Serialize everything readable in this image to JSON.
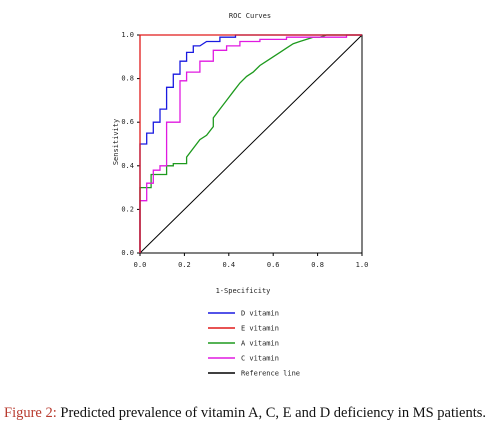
{
  "figure": {
    "caption_label": "Figure 2:",
    "caption_text": " Predicted prevalence of vitamin A, C, E and D deficiency in MS patients."
  },
  "chart_data": {
    "type": "line",
    "title": "ROC Curves",
    "xlabel": "1-Specificity",
    "ylabel": "Sensitivity",
    "xlim": [
      0,
      1
    ],
    "ylim": [
      0,
      1
    ],
    "x_ticks": [
      "0.0",
      "0.2",
      "0.4",
      "0.6",
      "0.8",
      "1.0"
    ],
    "y_ticks": [
      "0.0",
      "0.2",
      "0.4",
      "0.6",
      "0.8",
      "1.0"
    ],
    "grid": false,
    "legend_position": "bottom-center",
    "colors": {
      "vitamin_d": "#1a1ae0",
      "vitamin_e": "#e01a1a",
      "vitamin_a": "#1e9a1e",
      "vitamin_c": "#e01ae0",
      "reference": "#000000"
    },
    "series": [
      {
        "name": "D vitamin",
        "color_key": "vitamin_d",
        "x": [
          0.0,
          0.0,
          0.03,
          0.03,
          0.06,
          0.06,
          0.09,
          0.09,
          0.12,
          0.12,
          0.15,
          0.15,
          0.18,
          0.18,
          0.21,
          0.21,
          0.24,
          0.24,
          0.27,
          0.3,
          0.33,
          0.36,
          0.36,
          0.4,
          0.43,
          0.43,
          0.47,
          1.0
        ],
        "y": [
          0.0,
          0.5,
          0.5,
          0.55,
          0.55,
          0.6,
          0.6,
          0.66,
          0.66,
          0.76,
          0.76,
          0.82,
          0.82,
          0.88,
          0.88,
          0.92,
          0.92,
          0.95,
          0.95,
          0.97,
          0.97,
          0.97,
          0.99,
          0.99,
          0.99,
          1.0,
          1.0,
          1.0
        ]
      },
      {
        "name": "E vitamin",
        "color_key": "vitamin_e",
        "x": [
          0.0,
          0.0,
          1.0
        ],
        "y": [
          0.0,
          1.0,
          1.0
        ]
      },
      {
        "name": "A vitamin",
        "color_key": "vitamin_a",
        "x": [
          0.0,
          0.0,
          0.05,
          0.05,
          0.12,
          0.12,
          0.15,
          0.15,
          0.21,
          0.21,
          0.27,
          0.3,
          0.33,
          0.33,
          0.36,
          0.39,
          0.42,
          0.45,
          0.48,
          0.51,
          0.54,
          0.57,
          0.6,
          0.63,
          0.66,
          0.69,
          0.72,
          0.75,
          0.78,
          0.81,
          0.84,
          0.88,
          0.92,
          0.96,
          1.0
        ],
        "y": [
          0.0,
          0.3,
          0.3,
          0.36,
          0.36,
          0.4,
          0.4,
          0.41,
          0.41,
          0.44,
          0.52,
          0.54,
          0.58,
          0.62,
          0.66,
          0.7,
          0.74,
          0.78,
          0.81,
          0.83,
          0.86,
          0.88,
          0.9,
          0.92,
          0.94,
          0.96,
          0.97,
          0.98,
          0.99,
          0.99,
          1.0,
          1.0,
          1.0,
          1.0,
          1.0
        ]
      },
      {
        "name": "C vitamin",
        "color_key": "vitamin_c",
        "x": [
          0.0,
          0.0,
          0.03,
          0.03,
          0.06,
          0.06,
          0.09,
          0.09,
          0.12,
          0.12,
          0.18,
          0.18,
          0.21,
          0.21,
          0.27,
          0.27,
          0.33,
          0.33,
          0.39,
          0.39,
          0.45,
          0.45,
          0.54,
          0.54,
          0.66,
          0.66,
          0.78,
          0.78,
          0.93,
          0.93,
          1.0
        ],
        "y": [
          0.0,
          0.24,
          0.24,
          0.32,
          0.32,
          0.38,
          0.38,
          0.4,
          0.4,
          0.6,
          0.6,
          0.79,
          0.79,
          0.83,
          0.83,
          0.88,
          0.88,
          0.93,
          0.93,
          0.95,
          0.95,
          0.97,
          0.97,
          0.98,
          0.98,
          0.99,
          0.99,
          0.99,
          0.99,
          1.0,
          1.0
        ]
      },
      {
        "name": "Reference line",
        "color_key": "reference",
        "x": [
          0.0,
          1.0
        ],
        "y": [
          0.0,
          1.0
        ]
      }
    ]
  }
}
